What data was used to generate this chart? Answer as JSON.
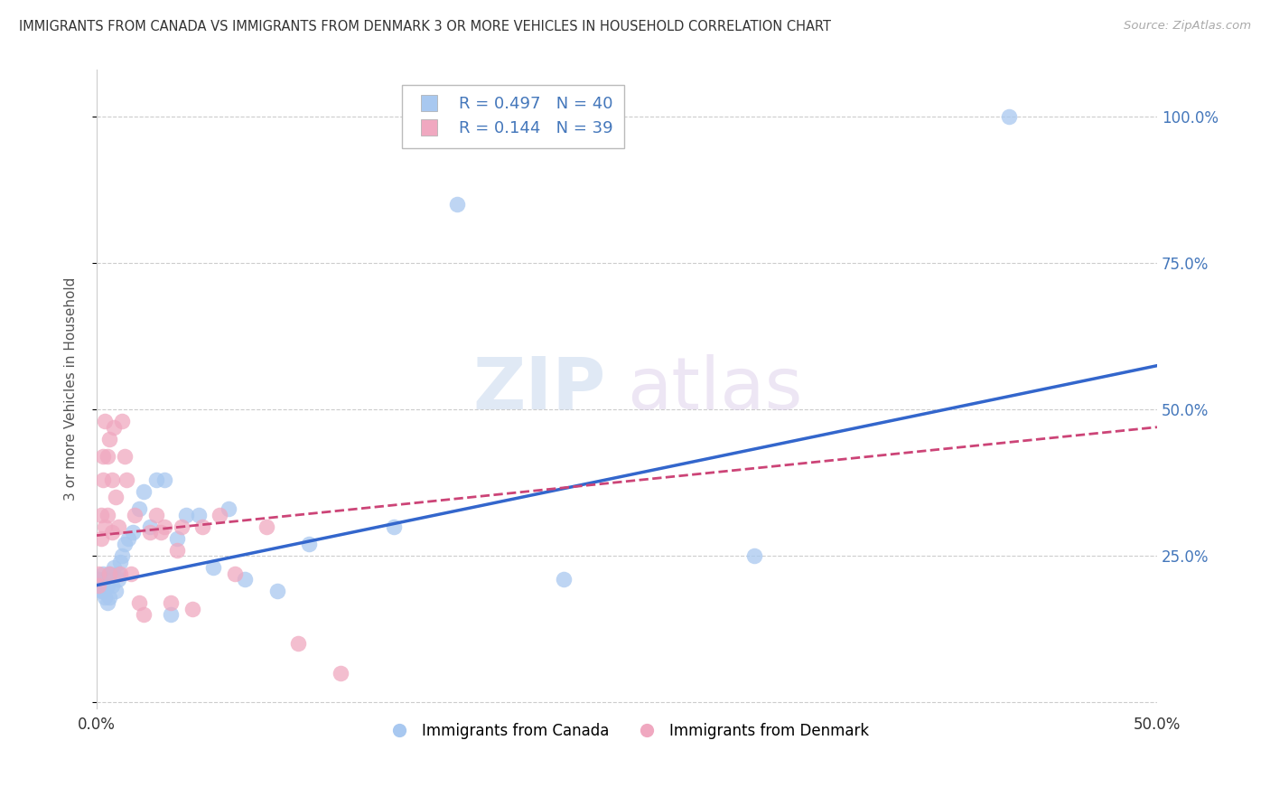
{
  "title": "IMMIGRANTS FROM CANADA VS IMMIGRANTS FROM DENMARK 3 OR MORE VEHICLES IN HOUSEHOLD CORRELATION CHART",
  "source": "Source: ZipAtlas.com",
  "ylabel": "3 or more Vehicles in Household",
  "xlim": [
    0.0,
    0.5
  ],
  "ylim": [
    -0.01,
    1.08
  ],
  "yticks": [
    0.0,
    0.25,
    0.5,
    0.75,
    1.0
  ],
  "ytick_labels_right": [
    "",
    "25.0%",
    "50.0%",
    "75.0%",
    "100.0%"
  ],
  "xticks": [
    0.0,
    0.1,
    0.2,
    0.3,
    0.4,
    0.5
  ],
  "xtick_labels": [
    "0.0%",
    "",
    "",
    "",
    "",
    "50.0%"
  ],
  "canada_color": "#a8c8f0",
  "denmark_color": "#f0a8c0",
  "canada_line_color": "#3366cc",
  "denmark_line_color": "#cc4477",
  "legend_canada_label": "Immigrants from Canada",
  "legend_denmark_label": "Immigrants from Denmark",
  "R_canada": 0.497,
  "N_canada": 40,
  "R_denmark": 0.144,
  "N_denmark": 39,
  "canada_x": [
    0.001,
    0.002,
    0.002,
    0.003,
    0.003,
    0.004,
    0.004,
    0.005,
    0.005,
    0.006,
    0.006,
    0.007,
    0.008,
    0.009,
    0.01,
    0.01,
    0.011,
    0.012,
    0.013,
    0.015,
    0.017,
    0.02,
    0.022,
    0.025,
    0.028,
    0.032,
    0.035,
    0.038,
    0.042,
    0.048,
    0.055,
    0.062,
    0.07,
    0.085,
    0.1,
    0.14,
    0.17,
    0.22,
    0.31,
    0.43
  ],
  "canada_y": [
    0.21,
    0.2,
    0.19,
    0.22,
    0.19,
    0.21,
    0.18,
    0.2,
    0.17,
    0.22,
    0.18,
    0.2,
    0.23,
    0.19,
    0.22,
    0.21,
    0.24,
    0.25,
    0.27,
    0.28,
    0.29,
    0.33,
    0.36,
    0.3,
    0.38,
    0.38,
    0.15,
    0.28,
    0.32,
    0.32,
    0.23,
    0.33,
    0.21,
    0.19,
    0.27,
    0.3,
    0.85,
    0.21,
    0.25,
    1.0
  ],
  "denmark_x": [
    0.001,
    0.001,
    0.002,
    0.002,
    0.003,
    0.003,
    0.004,
    0.004,
    0.005,
    0.005,
    0.006,
    0.006,
    0.007,
    0.007,
    0.008,
    0.009,
    0.01,
    0.011,
    0.012,
    0.013,
    0.014,
    0.016,
    0.018,
    0.02,
    0.022,
    0.025,
    0.028,
    0.03,
    0.032,
    0.035,
    0.038,
    0.04,
    0.045,
    0.05,
    0.058,
    0.065,
    0.08,
    0.095,
    0.115
  ],
  "denmark_y": [
    0.22,
    0.2,
    0.32,
    0.28,
    0.42,
    0.38,
    0.3,
    0.48,
    0.42,
    0.32,
    0.45,
    0.22,
    0.38,
    0.29,
    0.47,
    0.35,
    0.3,
    0.22,
    0.48,
    0.42,
    0.38,
    0.22,
    0.32,
    0.17,
    0.15,
    0.29,
    0.32,
    0.29,
    0.3,
    0.17,
    0.26,
    0.3,
    0.16,
    0.3,
    0.32,
    0.22,
    0.3,
    0.1,
    0.05
  ],
  "canada_line_x0": 0.0,
  "canada_line_y0": 0.2,
  "canada_line_x1": 0.5,
  "canada_line_y1": 0.575,
  "denmark_line_x0": 0.0,
  "denmark_line_y0": 0.285,
  "denmark_line_x1": 0.5,
  "denmark_line_y1": 0.47,
  "watermark_zip": "ZIP",
  "watermark_atlas": "atlas",
  "background_color": "#ffffff",
  "grid_color": "#cccccc"
}
